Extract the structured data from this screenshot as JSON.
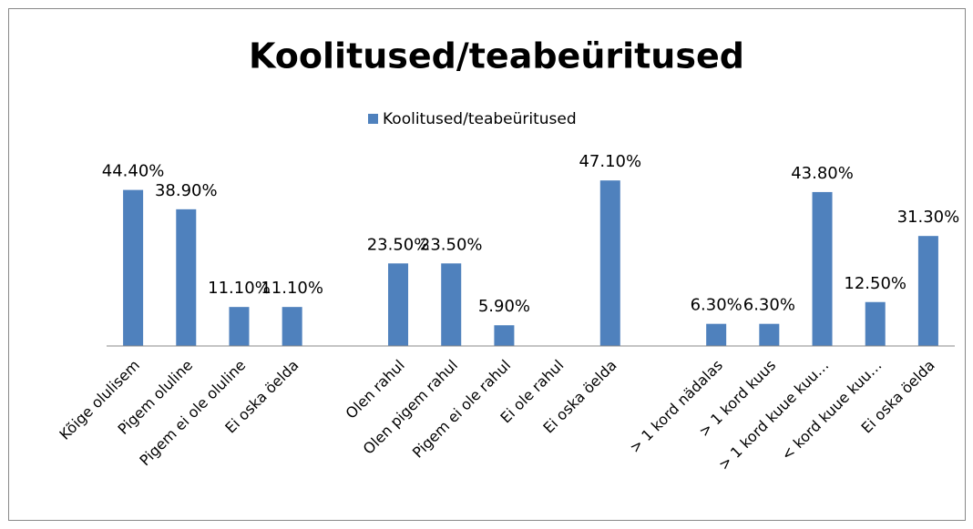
{
  "chart_data": {
    "type": "bar",
    "title": "Koolitused/teabeüritused",
    "categories": [
      "Kõige olulisem",
      "Pigem oluline",
      "Pigem ei ole oluline",
      "Ei oska öelda",
      null,
      "Olen rahul",
      "Olen pigem rahul",
      "Pigem ei ole rahul",
      "Ei ole rahul",
      "Ei oska öelda",
      null,
      "> 1 kord nädalas",
      "> 1 kord kuus",
      "> 1 kord kuue kuu…",
      "< kord kuue kuu…",
      "Ei oska öelda"
    ],
    "series": [
      {
        "name": "Koolitused/teabeüritused",
        "color": "#4f81bd",
        "values": [
          44.4,
          38.9,
          11.1,
          11.1,
          null,
          23.5,
          23.5,
          5.9,
          null,
          47.1,
          null,
          6.3,
          6.3,
          43.8,
          12.5,
          31.3
        ],
        "value_labels": [
          "44.40%",
          "38.90%",
          "11.10%",
          "11.10%",
          null,
          "23.50%",
          "23.50%",
          "5.90%",
          null,
          "47.10%",
          null,
          "6.30%",
          "6.30%",
          "43.80%",
          "12.50%",
          "31.30%"
        ]
      }
    ],
    "ylim": [
      0,
      50
    ],
    "legend": "top"
  }
}
